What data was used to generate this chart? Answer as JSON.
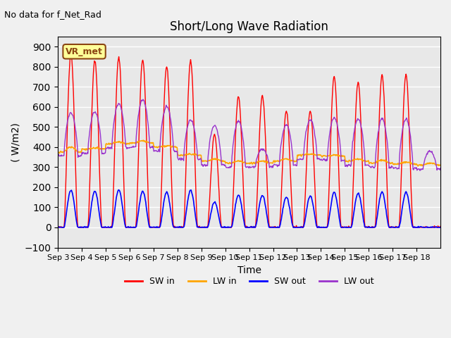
{
  "title": "Short/Long Wave Radiation",
  "xlabel": "Time",
  "ylabel": "( W/m2)",
  "ylim": [
    -100,
    950
  ],
  "yticks": [
    -100,
    0,
    100,
    200,
    300,
    400,
    500,
    600,
    700,
    800,
    900
  ],
  "top_left_text": "No data for f_Net_Rad",
  "legend_label_text": "VR_met",
  "x_tick_labels": [
    "Sep 3",
    "Sep 4",
    "Sep 5",
    "Sep 6",
    "Sep 7",
    "Sep 8",
    "Sep 9",
    "Sep 10",
    "Sep 11",
    "Sep 12",
    "Sep 13",
    "Sep 14",
    "Sep 15",
    "Sep 16",
    "Sep 17",
    "Sep 18"
  ],
  "colors": {
    "SW_in": "#ff0000",
    "LW_in": "#ffa500",
    "SW_out": "#0000ff",
    "LW_out": "#9932cc",
    "background": "#e8e8e8",
    "grid": "#ffffff"
  },
  "num_days": 16,
  "SW_in_peaks": [
    865,
    830,
    845,
    835,
    800,
    830,
    460,
    650,
    655,
    580,
    580,
    750,
    720,
    755,
    760,
    0
  ],
  "LW_in_peaks": [
    375,
    390,
    415,
    420,
    400,
    360,
    330,
    320,
    320,
    330,
    360,
    355,
    330,
    320,
    315,
    310
  ],
  "LW_in_midday_peaks": [
    400,
    395,
    425,
    430,
    405,
    365,
    340,
    330,
    330,
    340,
    365,
    360,
    340,
    335,
    325,
    320
  ],
  "SW_out_peaks": [
    185,
    180,
    185,
    180,
    175,
    185,
    125,
    160,
    160,
    150,
    155,
    175,
    170,
    175,
    175,
    0
  ],
  "LW_out_peaks": [
    570,
    575,
    615,
    635,
    600,
    535,
    505,
    530,
    390,
    510,
    535,
    545,
    540,
    540,
    540,
    380
  ]
}
